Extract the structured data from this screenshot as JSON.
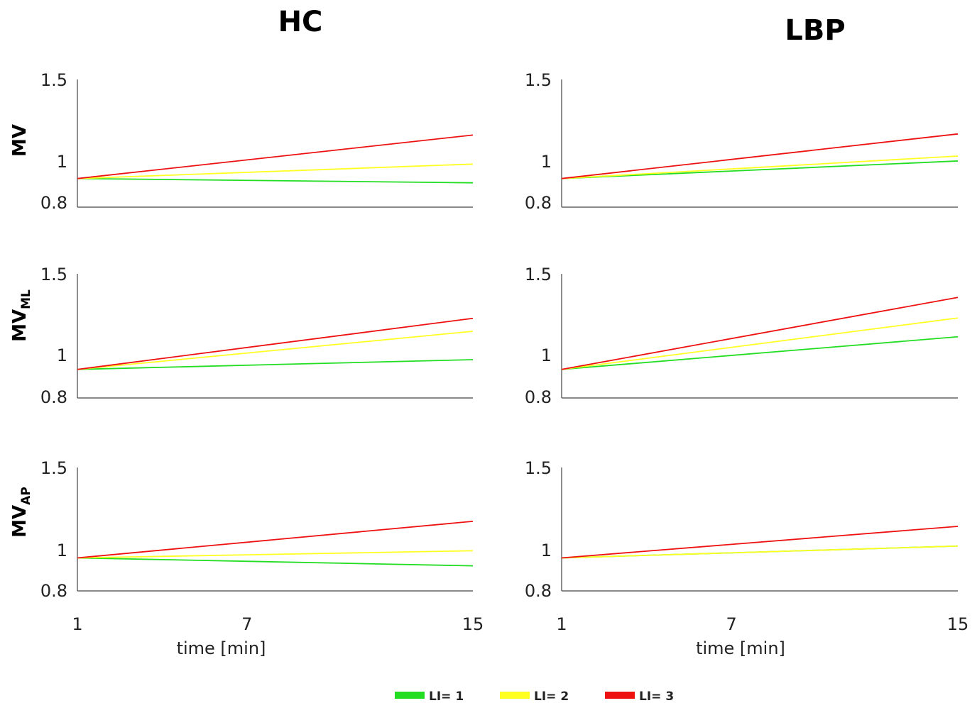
{
  "columns": [
    {
      "key": "hc",
      "title": "HC"
    },
    {
      "key": "lbp",
      "title": "LBP"
    }
  ],
  "rows": [
    {
      "key": "mv",
      "label": "MV",
      "sub": ""
    },
    {
      "key": "mvml",
      "label": "MV",
      "sub": "ML"
    },
    {
      "key": "mvap",
      "label": "MV",
      "sub": "AP"
    }
  ],
  "legend": [
    {
      "label": "LI= 1",
      "color": "#22dd22"
    },
    {
      "label": "LI= 2",
      "color": "#ffff22"
    },
    {
      "label": "LI= 3",
      "color": "#ee1111"
    }
  ],
  "chart_data": [
    {
      "type": "line",
      "panel": "hc-mv",
      "title": "HC",
      "ylabel": "MV",
      "xlabel": "",
      "x": [
        1,
        15
      ],
      "xticks": [
        1,
        7,
        15
      ],
      "xlim": [
        1,
        15
      ],
      "ylim": [
        0.8,
        1.5
      ],
      "yticks": [
        0.8,
        1,
        1.5
      ],
      "series": [
        {
          "name": "LI= 1",
          "color": "#22dd22",
          "values": [
            0.955,
            0.932
          ]
        },
        {
          "name": "LI= 2",
          "color": "#ffff22",
          "values": [
            0.955,
            1.034
          ]
        },
        {
          "name": "LI= 3",
          "color": "#ee1111",
          "values": [
            0.955,
            1.194
          ]
        }
      ]
    },
    {
      "type": "line",
      "panel": "lbp-mv",
      "title": "LBP",
      "ylabel": "",
      "xlabel": "",
      "x": [
        1,
        15
      ],
      "xticks": [
        1,
        7,
        15
      ],
      "xlim": [
        1,
        15
      ],
      "ylim": [
        0.8,
        1.5
      ],
      "yticks": [
        0.8,
        1,
        1.5
      ],
      "series": [
        {
          "name": "LI= 1",
          "color": "#22dd22",
          "values": [
            0.955,
            1.051
          ]
        },
        {
          "name": "LI= 2",
          "color": "#ffff22",
          "values": [
            0.955,
            1.078
          ]
        },
        {
          "name": "LI= 3",
          "color": "#ee1111",
          "values": [
            0.955,
            1.2
          ]
        }
      ]
    },
    {
      "type": "line",
      "panel": "hc-mvml",
      "title": "",
      "ylabel": "MV_ML",
      "xlabel": "",
      "x": [
        1,
        15
      ],
      "xticks": [
        1,
        7,
        15
      ],
      "xlim": [
        1,
        15
      ],
      "ylim": [
        0.8,
        1.5
      ],
      "yticks": [
        0.8,
        1,
        1.5
      ],
      "series": [
        {
          "name": "LI= 1",
          "color": "#22dd22",
          "values": [
            0.961,
            1.016
          ]
        },
        {
          "name": "LI= 2",
          "color": "#ffff22",
          "values": [
            0.961,
            1.176
          ]
        },
        {
          "name": "LI= 3",
          "color": "#ee1111",
          "values": [
            0.961,
            1.249
          ]
        }
      ]
    },
    {
      "type": "line",
      "panel": "lbp-mvml",
      "title": "",
      "ylabel": "",
      "xlabel": "",
      "x": [
        1,
        15
      ],
      "xticks": [
        1,
        7,
        15
      ],
      "xlim": [
        1,
        15
      ],
      "ylim": [
        0.8,
        1.5
      ],
      "yticks": [
        0.8,
        1,
        1.5
      ],
      "series": [
        {
          "name": "LI= 1",
          "color": "#22dd22",
          "values": [
            0.961,
            1.145
          ]
        },
        {
          "name": "LI= 2",
          "color": "#ffff22",
          "values": [
            0.961,
            1.251
          ]
        },
        {
          "name": "LI= 3",
          "color": "#ee1111",
          "values": [
            0.961,
            1.367
          ]
        }
      ]
    },
    {
      "type": "line",
      "panel": "hc-mvap",
      "title": "",
      "ylabel": "MV_AP",
      "xlabel": "time [min]",
      "x": [
        1,
        15
      ],
      "xticks": [
        1,
        7,
        15
      ],
      "xlim": [
        1,
        15
      ],
      "ylim": [
        0.8,
        1.5
      ],
      "yticks": [
        0.8,
        1,
        1.5
      ],
      "series": [
        {
          "name": "LI= 1",
          "color": "#22dd22",
          "values": [
            0.979,
            0.936
          ]
        },
        {
          "name": "LI= 2",
          "color": "#ffff22",
          "values": [
            0.979,
            1.019
          ]
        },
        {
          "name": "LI= 3",
          "color": "#ee1111",
          "values": [
            0.979,
            1.189
          ]
        }
      ]
    },
    {
      "type": "line",
      "panel": "lbp-mvap",
      "title": "",
      "ylabel": "",
      "xlabel": "time [min]",
      "x": [
        1,
        15
      ],
      "xticks": [
        1,
        7,
        15
      ],
      "xlim": [
        1,
        15
      ],
      "ylim": [
        0.8,
        1.5
      ],
      "yticks": [
        0.8,
        1,
        1.5
      ],
      "series": [
        {
          "name": "LI= 1",
          "color": "#22dd22",
          "values": [
            0.979,
            1.046
          ]
        },
        {
          "name": "LI= 2",
          "color": "#ffff22",
          "values": [
            0.979,
            1.046
          ]
        },
        {
          "name": "LI= 3",
          "color": "#ee1111",
          "values": [
            0.979,
            1.16
          ]
        }
      ]
    }
  ]
}
